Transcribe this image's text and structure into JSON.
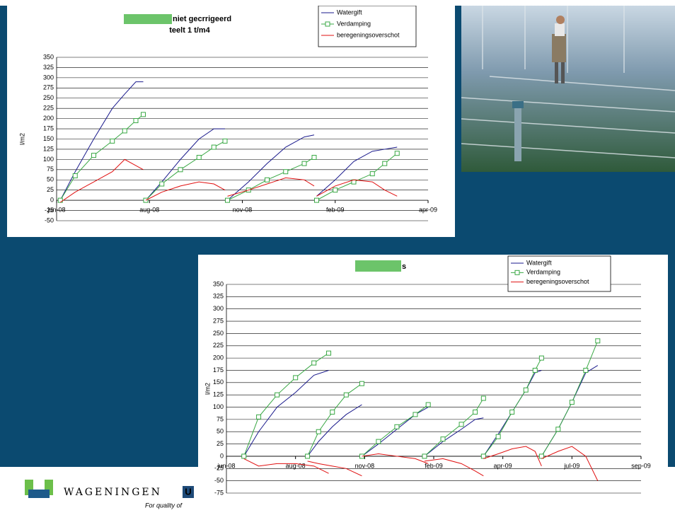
{
  "chart_data": [
    {
      "type": "line",
      "title": "niet gecrrigeerd",
      "subtitle": "teelt 1 t/m4",
      "y_label": "l/m2",
      "xlim": [
        0,
        300
      ],
      "xticks": [
        {
          "value": 0,
          "label": "jun-08"
        },
        {
          "value": 75,
          "label": "aug-08"
        },
        {
          "value": 150,
          "label": "nov-08"
        },
        {
          "value": 225,
          "label": "feb-09"
        },
        {
          "value": 300,
          "label": "apr-09"
        }
      ],
      "ylim": [
        -50,
        350
      ],
      "yticks": [
        -50,
        -25,
        0,
        25,
        50,
        75,
        100,
        125,
        150,
        175,
        200,
        225,
        250,
        275,
        300,
        325,
        350
      ],
      "grid": true,
      "x": [
        3,
        15,
        30,
        45,
        55,
        64,
        70,
        72,
        72,
        85,
        100,
        115,
        127,
        136,
        138,
        138,
        155,
        170,
        185,
        200,
        208,
        210,
        210,
        225,
        240,
        255,
        265,
        275
      ],
      "series": [
        {
          "name": "Watergift",
          "color": "#1a1a8c",
          "values": [
            0,
            70,
            150,
            225,
            260,
            290,
            290,
            null,
            0,
            45,
            100,
            150,
            175,
            175,
            null,
            0,
            45,
            90,
            130,
            155,
            160,
            null,
            10,
            50,
            95,
            120,
            125,
            130
          ]
        },
        {
          "name": "Verdamping",
          "color": "#3aa845",
          "marker": "square",
          "values": [
            0,
            60,
            110,
            145,
            170,
            195,
            210,
            null,
            0,
            40,
            75,
            105,
            130,
            145,
            null,
            0,
            25,
            50,
            70,
            90,
            105,
            null,
            0,
            25,
            45,
            65,
            90,
            115
          ]
        },
        {
          "name": "beregeningsoverschot",
          "color": "#e01010",
          "values": [
            -5,
            20,
            45,
            70,
            100,
            85,
            75,
            null,
            0,
            20,
            35,
            45,
            40,
            25,
            null,
            10,
            25,
            40,
            55,
            50,
            35,
            null,
            10,
            35,
            50,
            45,
            25,
            10
          ]
        }
      ]
    },
    {
      "type": "line",
      "title": "s",
      "y_label": "l/m2",
      "xlim": [
        0,
        450
      ],
      "xticks": [
        {
          "value": 0,
          "label": "jun-08"
        },
        {
          "value": 75,
          "label": "aug-08"
        },
        {
          "value": 150,
          "label": "nov-08"
        },
        {
          "value": 225,
          "label": "feb-09"
        },
        {
          "value": 300,
          "label": "apr-09"
        },
        {
          "value": 375,
          "label": "jul-09"
        },
        {
          "value": 450,
          "label": "sep-09"
        }
      ],
      "ylim": [
        -75,
        350
      ],
      "yticks": [
        -75,
        -50,
        -25,
        0,
        25,
        50,
        75,
        100,
        125,
        150,
        175,
        200,
        225,
        250,
        275,
        300,
        325,
        350
      ],
      "grid": true,
      "x": [
        19,
        35,
        55,
        75,
        95,
        111,
        88,
        88,
        100,
        115,
        130,
        147,
        147,
        147,
        165,
        185,
        205,
        219,
        215,
        215,
        235,
        255,
        270,
        279,
        279,
        279,
        295,
        310,
        325,
        335,
        342,
        342,
        342,
        360,
        375,
        390,
        403
      ],
      "series": [
        {
          "name": "Watergift",
          "color": "#1a1a8c",
          "values": [
            0,
            50,
            100,
            130,
            165,
            175,
            null,
            0,
            30,
            60,
            85,
            105,
            null,
            0,
            25,
            55,
            85,
            100,
            null,
            0,
            30,
            55,
            75,
            78,
            null,
            0,
            45,
            90,
            135,
            170,
            175,
            null,
            0,
            55,
            110,
            170,
            185
          ]
        },
        {
          "name": "Verdamping",
          "color": "#3aa845",
          "marker": "square",
          "values": [
            0,
            80,
            125,
            160,
            190,
            210,
            null,
            0,
            50,
            90,
            125,
            148,
            null,
            0,
            30,
            60,
            85,
            105,
            null,
            0,
            35,
            65,
            90,
            118,
            null,
            0,
            40,
            90,
            135,
            175,
            200,
            null,
            0,
            55,
            110,
            175,
            235
          ]
        },
        {
          "name": "beregeningsoverschot",
          "color": "#e01010",
          "values": [
            -5,
            -20,
            -15,
            -15,
            -20,
            -35,
            null,
            -10,
            -15,
            -20,
            -25,
            -40,
            null,
            0,
            5,
            0,
            -5,
            -15,
            null,
            -10,
            -5,
            -15,
            -30,
            -40,
            null,
            -5,
            5,
            15,
            20,
            10,
            -20,
            null,
            -5,
            10,
            20,
            0,
            -50
          ]
        }
      ]
    }
  ],
  "logo": {
    "name": "WAGENINGEN",
    "letter": "U",
    "tagline": "For quality of"
  }
}
